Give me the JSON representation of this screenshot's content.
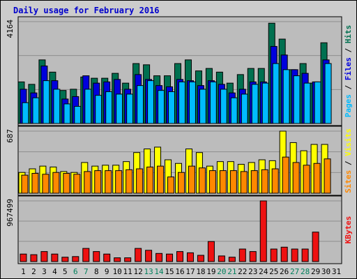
{
  "chart_data": {
    "type": "bar",
    "title": "Daily usage for February 2016",
    "colors": {
      "title": "#0000cc",
      "hits": "#007050",
      "files": "#0000dd",
      "pages": "#00bbff",
      "visits": "#ffff00",
      "sites": "#ff8800",
      "kbytes": "#ee1111",
      "weekend_day": "#00805c",
      "weekday": "#000000",
      "plot_bg": "#bcbcbc",
      "frame_bg": "#cccccc"
    },
    "days": [
      {
        "label": "1",
        "weekend": false
      },
      {
        "label": "2",
        "weekend": false
      },
      {
        "label": "3",
        "weekend": false
      },
      {
        "label": "4",
        "weekend": false
      },
      {
        "label": "5",
        "weekend": false
      },
      {
        "label": "6",
        "weekend": true
      },
      {
        "label": "7",
        "weekend": true
      },
      {
        "label": "8",
        "weekend": false
      },
      {
        "label": "9",
        "weekend": false
      },
      {
        "label": "10",
        "weekend": false
      },
      {
        "label": "11",
        "weekend": false
      },
      {
        "label": "12",
        "weekend": false
      },
      {
        "label": "13",
        "weekend": true
      },
      {
        "label": "14",
        "weekend": true
      },
      {
        "label": "15",
        "weekend": false
      },
      {
        "label": "16",
        "weekend": false
      },
      {
        "label": "17",
        "weekend": false
      },
      {
        "label": "18",
        "weekend": false
      },
      {
        "label": "19",
        "weekend": false
      },
      {
        "label": "20",
        "weekend": true
      },
      {
        "label": "21",
        "weekend": true
      },
      {
        "label": "22",
        "weekend": false
      },
      {
        "label": "23",
        "weekend": false
      },
      {
        "label": "24",
        "weekend": false
      },
      {
        "label": "25",
        "weekend": false
      },
      {
        "label": "26",
        "weekend": false
      },
      {
        "label": "27",
        "weekend": true
      },
      {
        "label": "28",
        "weekend": true
      },
      {
        "label": "29",
        "weekend": false
      },
      {
        "label": "30",
        "weekend": false
      },
      {
        "label": "31",
        "weekend": false
      }
    ],
    "panels": [
      {
        "id": "hits",
        "max_label": "4164",
        "ymax": 4164,
        "side_labels": [
          "Pages",
          "Files",
          "Hits"
        ],
        "series": [
          {
            "name": "Hits",
            "color": "#007050",
            "values": [
              1700,
              1600,
              2600,
              2100,
              1350,
              1400,
              1900,
              1850,
              1850,
              2050,
              1650,
              2450,
              2400,
              1950,
              1950,
              2450,
              2600,
              2150,
              2250,
              2100,
              1650,
              2000,
              2250,
              2250,
              4100,
              3450,
              2200,
              2450,
              1650,
              3300,
              null
            ]
          },
          {
            "name": "Files",
            "color": "#0000dd",
            "values": [
              1400,
              1250,
              2350,
              1750,
              1000,
              1100,
              1950,
              1650,
              1700,
              1800,
              1400,
              2000,
              1800,
              1550,
              1500,
              1800,
              1750,
              1550,
              1750,
              1600,
              1250,
              1400,
              1700,
              1700,
              3150,
              2800,
              2200,
              2050,
              1700,
              2600,
              null
            ]
          },
          {
            "name": "Pages",
            "color": "#00bbff",
            "values": [
              850,
              1050,
              1750,
              1400,
              800,
              700,
              1400,
              1150,
              1300,
              1200,
              1200,
              1550,
              1750,
              1350,
              1300,
              1700,
              1700,
              1400,
              1700,
              1400,
              1050,
              1200,
              1600,
              1650,
              2450,
              2200,
              1950,
              1650,
              1700,
              2450,
              null
            ]
          }
        ]
      },
      {
        "id": "visits",
        "max_label": "687",
        "ymax": 687,
        "side_labels": [
          "Sites",
          "Visits"
        ],
        "series": [
          {
            "name": "Visits",
            "color": "#ffff00",
            "values": [
              230,
              270,
              300,
              290,
              240,
              230,
              340,
              300,
              310,
              310,
              350,
              450,
              490,
              510,
              370,
              330,
              490,
              450,
              300,
              350,
              350,
              320,
              340,
              370,
              360,
              687,
              560,
              470,
              540,
              540,
              null
            ]
          },
          {
            "name": "Sites",
            "color": "#ff8800",
            "values": [
              200,
              220,
              210,
              230,
              220,
              210,
              240,
              250,
              250,
              250,
              260,
              270,
              290,
              300,
              180,
              230,
              300,
              280,
              250,
              250,
              250,
              240,
              250,
              260,
              270,
              400,
              340,
              310,
              330,
              380,
              null
            ]
          }
        ]
      },
      {
        "id": "kbytes",
        "max_label": "967499",
        "ymax": 967499,
        "side_labels": [
          "KBytes"
        ],
        "series": [
          {
            "name": "KBytes",
            "color": "#ee1111",
            "values": [
              120000,
              110000,
              160000,
              120000,
              70000,
              80000,
              210000,
              160000,
              120000,
              60000,
              60000,
              210000,
              180000,
              130000,
              120000,
              160000,
              140000,
              100000,
              320000,
              90000,
              70000,
              200000,
              160000,
              967499,
              200000,
              230000,
              200000,
              200000,
              470000,
              null,
              null
            ]
          }
        ]
      }
    ]
  }
}
